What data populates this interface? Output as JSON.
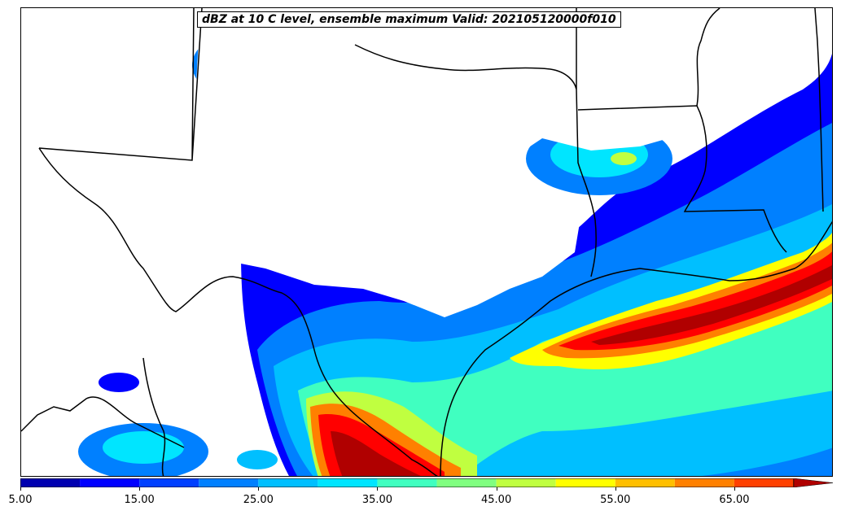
{
  "title": "dBZ at 10 C level, ensemble maximum Valid: 202105120000f010",
  "colorbar": {
    "levels": [
      5,
      10,
      15,
      20,
      25,
      30,
      35,
      40,
      45,
      50,
      55,
      60,
      65,
      70
    ],
    "extend": "max",
    "colors": [
      "#0000b0",
      "#0000ff",
      "#0040ff",
      "#0080ff",
      "#00bfff",
      "#00e5ff",
      "#40ffc0",
      "#80ff80",
      "#c0ff40",
      "#ffff00",
      "#ffbf00",
      "#ff8000",
      "#ff4000",
      "#ff0000",
      "#b00000"
    ],
    "tick_labels": [
      "5.00",
      "15.00",
      "25.00",
      "35.00",
      "45.00",
      "55.00",
      "65.00"
    ]
  },
  "map": {
    "field": "reflectivity_dbz",
    "region": "Texas / Gulf Coast",
    "borders": "state and coastline outlines"
  }
}
